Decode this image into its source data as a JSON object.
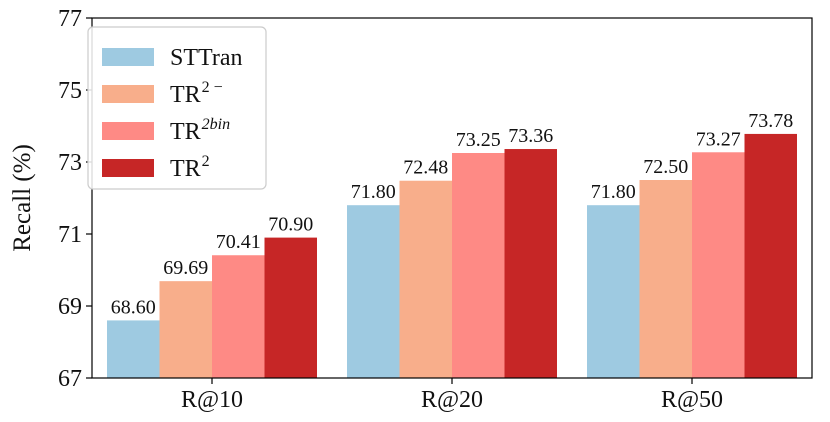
{
  "chart_data": {
    "type": "bar",
    "categories": [
      "R@10",
      "R@20",
      "R@50"
    ],
    "series": [
      {
        "name": "STTran",
        "name_base": "STTran",
        "name_sup": "",
        "sup_italic": false,
        "color": "#9ecae1",
        "values": [
          68.6,
          71.8,
          71.8
        ]
      },
      {
        "name": "TR2−",
        "name_base": "TR",
        "name_sup": "2 −",
        "sup_italic": false,
        "color": "#f8ae8b",
        "values": [
          69.69,
          72.48,
          72.5
        ]
      },
      {
        "name": "TR2bin",
        "name_base": "TR",
        "name_sup": "2bin",
        "sup_italic": true,
        "color": "#fe8a85",
        "values": [
          70.41,
          73.25,
          73.27
        ]
      },
      {
        "name": "TR2",
        "name_base": "TR",
        "name_sup": "2",
        "sup_italic": false,
        "color": "#c62626",
        "values": [
          70.9,
          73.36,
          73.78
        ]
      }
    ],
    "data_labels": [
      [
        "68.60",
        "71.80",
        "71.80"
      ],
      [
        "69.69",
        "72.48",
        "72.50"
      ],
      [
        "70.41",
        "73.25",
        "73.27"
      ],
      [
        "70.90",
        "73.36",
        "73.78"
      ]
    ],
    "title": "",
    "xlabel": "",
    "ylabel": "Recall (%)",
    "ylim": [
      67,
      77
    ],
    "yticks": [
      "67",
      "69",
      "71",
      "73",
      "75",
      "77"
    ],
    "grid": false,
    "legend_position": "top-left"
  }
}
